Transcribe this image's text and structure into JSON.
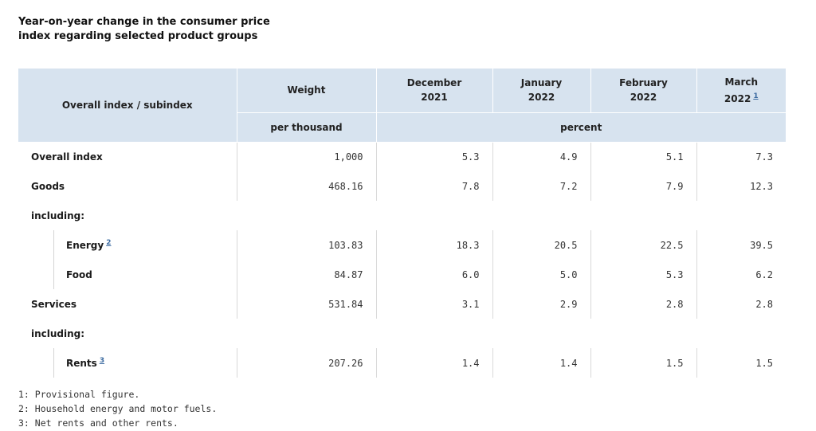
{
  "title": "Year-on-year change in the consumer price index regarding selected product groups",
  "header": {
    "col0": "Overall index / subindex",
    "col_weight": "Weight",
    "months": [
      {
        "line1": "December",
        "line2": "2021",
        "footnote": ""
      },
      {
        "line1": "January",
        "line2": "2022",
        "footnote": ""
      },
      {
        "line1": "February",
        "line2": "2022",
        "footnote": ""
      },
      {
        "line1": "March",
        "line2": "2022",
        "footnote": "1"
      }
    ],
    "unit_weight": "per thousand",
    "unit_percent": "percent"
  },
  "rows": [
    {
      "label": "Overall index",
      "footnote": "",
      "weight": "1,000",
      "values": [
        "5.3",
        "4.9",
        "5.1",
        "7.3"
      ]
    },
    {
      "label": "Goods",
      "footnote": "",
      "weight": "468.16",
      "values": [
        "7.8",
        "7.2",
        "7.9",
        "12.3"
      ]
    },
    {
      "label": "including:"
    },
    {
      "label": "Energy",
      "footnote": "2",
      "weight": "103.83",
      "values": [
        "18.3",
        "20.5",
        "22.5",
        "39.5"
      ]
    },
    {
      "label": "Food",
      "footnote": "",
      "weight": "84.87",
      "values": [
        "6.0",
        "5.0",
        "5.3",
        "6.2"
      ]
    },
    {
      "label": "Services",
      "footnote": "",
      "weight": "531.84",
      "values": [
        "3.1",
        "2.9",
        "2.8",
        "2.8"
      ]
    },
    {
      "label": "including:"
    },
    {
      "label": "Rents",
      "footnote": "3",
      "weight": "207.26",
      "values": [
        "1.4",
        "1.4",
        "1.5",
        "1.5"
      ]
    }
  ],
  "footnotes": [
    "1: Provisional figure.",
    "2: Household energy and motor fuels.",
    "3: Net rents and other rents."
  ],
  "colors": {
    "header_bg": "#d7e3ef",
    "footnote_link": "#3b6aa0"
  }
}
